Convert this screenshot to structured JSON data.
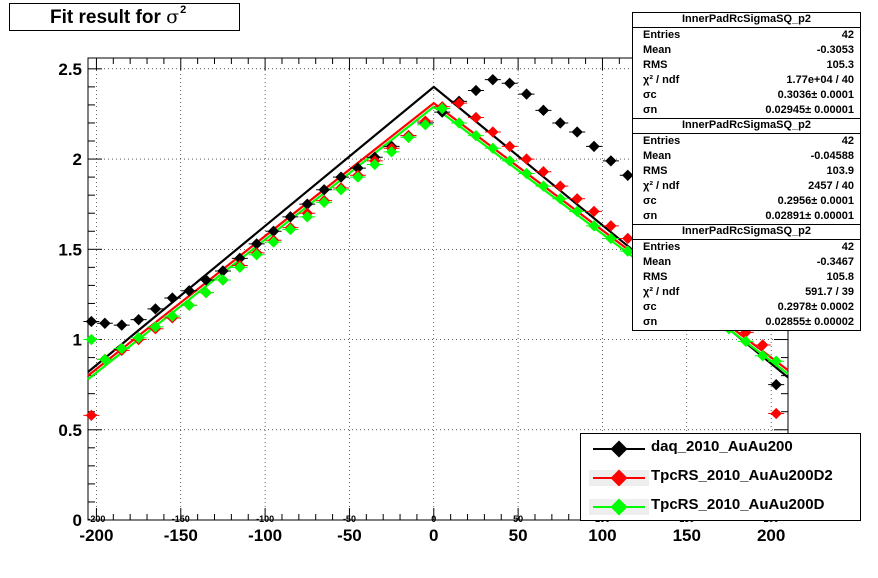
{
  "title": {
    "text": "Fit result for",
    "symbol": "σ",
    "superscript": "2"
  },
  "stat_boxes": [
    {
      "name": "InnerPadRcSigmaSQ_p2",
      "rows": [
        {
          "k": "Entries",
          "v": "42"
        },
        {
          "k": "Mean",
          "v": "-0.3053"
        },
        {
          "k": "RMS",
          "v": "105.3"
        },
        {
          "k": "χ² / ndf",
          "v": "1.77e+04 / 40"
        },
        {
          "k": "σc",
          "v": "0.3036± 0.0001"
        },
        {
          "k": "σn",
          "v": "0.02945± 0.00001"
        }
      ]
    },
    {
      "name": "InnerPadRcSigmaSQ_p2",
      "rows": [
        {
          "k": "Entries",
          "v": "42"
        },
        {
          "k": "Mean",
          "v": "-0.04588"
        },
        {
          "k": "RMS",
          "v": "103.9"
        },
        {
          "k": "χ² / ndf",
          "v": "2457 / 40"
        },
        {
          "k": "σc",
          "v": "0.2956± 0.0001"
        },
        {
          "k": "σn",
          "v": "0.02891± 0.00001"
        }
      ]
    },
    {
      "name": "InnerPadRcSigmaSQ_p2",
      "rows": [
        {
          "k": "Entries",
          "v": "42"
        },
        {
          "k": "Mean",
          "v": "-0.3467"
        },
        {
          "k": "RMS",
          "v": "105.8"
        },
        {
          "k": "χ² / ndf",
          "v": "591.7 / 39"
        },
        {
          "k": "σc",
          "v": "0.2978± 0.0002"
        },
        {
          "k": "σn",
          "v": "0.02855± 0.00002"
        }
      ]
    }
  ],
  "legend": [
    {
      "label": "daq_2010_AuAu200",
      "color": "#000000"
    },
    {
      "label": "TpcRS_2010_AuAu200D2",
      "color": "#ff0000"
    },
    {
      "label": "TpcRS_2010_AuAu200D",
      "color": "#00ff00"
    }
  ],
  "chart_data": {
    "type": "scatter",
    "title": "Fit result for σ²",
    "xlabel": "",
    "ylabel": "",
    "xlim": [
      -205,
      210
    ],
    "ylim": [
      0,
      2.56
    ],
    "x_ticks": [
      -200,
      -150,
      -100,
      -50,
      0,
      50,
      100,
      150,
      200
    ],
    "y_ticks": [
      0,
      0.5,
      1,
      1.5,
      2,
      2.5
    ],
    "x_tick_labels": [
      "-200",
      "-150",
      "-100",
      "-50",
      "0",
      "50",
      "100",
      "150",
      "200"
    ],
    "y_tick_labels": [
      "0",
      "0.5",
      "1",
      "1.5",
      "2",
      "2.5"
    ],
    "grid": true,
    "series": [
      {
        "name": "daq_2010_AuAu200",
        "color": "#000000",
        "x": [
          -203,
          -195,
          -185,
          -175,
          -165,
          -155,
          -145,
          -135,
          -125,
          -115,
          -105,
          -95,
          -85,
          -75,
          -65,
          -55,
          -45,
          -35,
          -25,
          -15,
          -5,
          5,
          15,
          25,
          35,
          45,
          55,
          65,
          75,
          85,
          95,
          105,
          115,
          125,
          135,
          145,
          155,
          165,
          175,
          185,
          195,
          203
        ],
        "y": [
          1.1,
          1.09,
          1.08,
          1.11,
          1.17,
          1.23,
          1.27,
          1.33,
          1.38,
          1.45,
          1.53,
          1.6,
          1.68,
          1.75,
          1.83,
          1.9,
          1.95,
          2.01,
          2.07,
          2.13,
          2.2,
          2.26,
          2.32,
          2.38,
          2.44,
          2.42,
          2.36,
          2.27,
          2.2,
          2.15,
          2.07,
          1.99,
          1.91,
          1.85,
          1.78,
          1.7,
          1.63,
          1.55,
          1.45,
          1.36,
          1.27,
          0.75
        ],
        "fit": {
          "xs": [
            -205,
            0,
            210
          ],
          "ys": [
            0.82,
            2.4,
            0.79
          ]
        }
      },
      {
        "name": "TpcRS_2010_AuAu200D2",
        "color": "#ff0000",
        "x": [
          -203,
          -195,
          -185,
          -175,
          -165,
          -155,
          -145,
          -135,
          -125,
          -115,
          -105,
          -95,
          -85,
          -75,
          -65,
          -55,
          -45,
          -35,
          -25,
          -15,
          -5,
          5,
          15,
          25,
          35,
          45,
          55,
          65,
          75,
          85,
          95,
          105,
          115,
          125,
          135,
          145,
          155,
          165,
          175,
          185,
          195,
          203
        ],
        "y": [
          0.58,
          0.89,
          0.94,
          1.0,
          1.06,
          1.12,
          1.19,
          1.26,
          1.33,
          1.41,
          1.48,
          1.55,
          1.62,
          1.7,
          1.77,
          1.84,
          1.91,
          1.99,
          2.06,
          2.13,
          2.21,
          2.29,
          2.31,
          2.23,
          2.15,
          2.07,
          2.0,
          1.93,
          1.85,
          1.78,
          1.71,
          1.63,
          1.56,
          1.48,
          1.41,
          1.34,
          1.27,
          1.19,
          1.12,
          1.04,
          0.97,
          0.59
        ],
        "fit": {
          "xs": [
            -205,
            0,
            210
          ],
          "ys": [
            0.8,
            2.31,
            0.83
          ]
        }
      },
      {
        "name": "TpcRS_2010_AuAu200D",
        "color": "#00ff00",
        "x": [
          -203,
          -195,
          -185,
          -175,
          -165,
          -155,
          -145,
          -135,
          -125,
          -115,
          -105,
          -95,
          -85,
          -75,
          -65,
          -55,
          -45,
          -35,
          -25,
          -15,
          -5,
          5,
          15,
          25,
          35,
          45,
          55,
          65,
          75,
          85,
          95,
          105,
          115,
          125,
          135,
          145,
          155,
          165,
          175,
          185,
          195,
          203
        ],
        "y": [
          1.0,
          0.89,
          0.95,
          1.01,
          1.07,
          1.13,
          1.19,
          1.26,
          1.33,
          1.4,
          1.47,
          1.54,
          1.61,
          1.68,
          1.76,
          1.83,
          1.9,
          1.97,
          2.04,
          2.12,
          2.19,
          2.28,
          2.2,
          2.13,
          2.06,
          1.99,
          1.92,
          1.85,
          1.78,
          1.71,
          1.63,
          1.56,
          1.49,
          1.42,
          1.35,
          1.28,
          1.21,
          1.13,
          1.06,
          0.99,
          0.91,
          0.88
        ],
        "fit": {
          "xs": [
            -205,
            0,
            210
          ],
          "ys": [
            0.78,
            2.29,
            0.81
          ]
        }
      }
    ]
  }
}
